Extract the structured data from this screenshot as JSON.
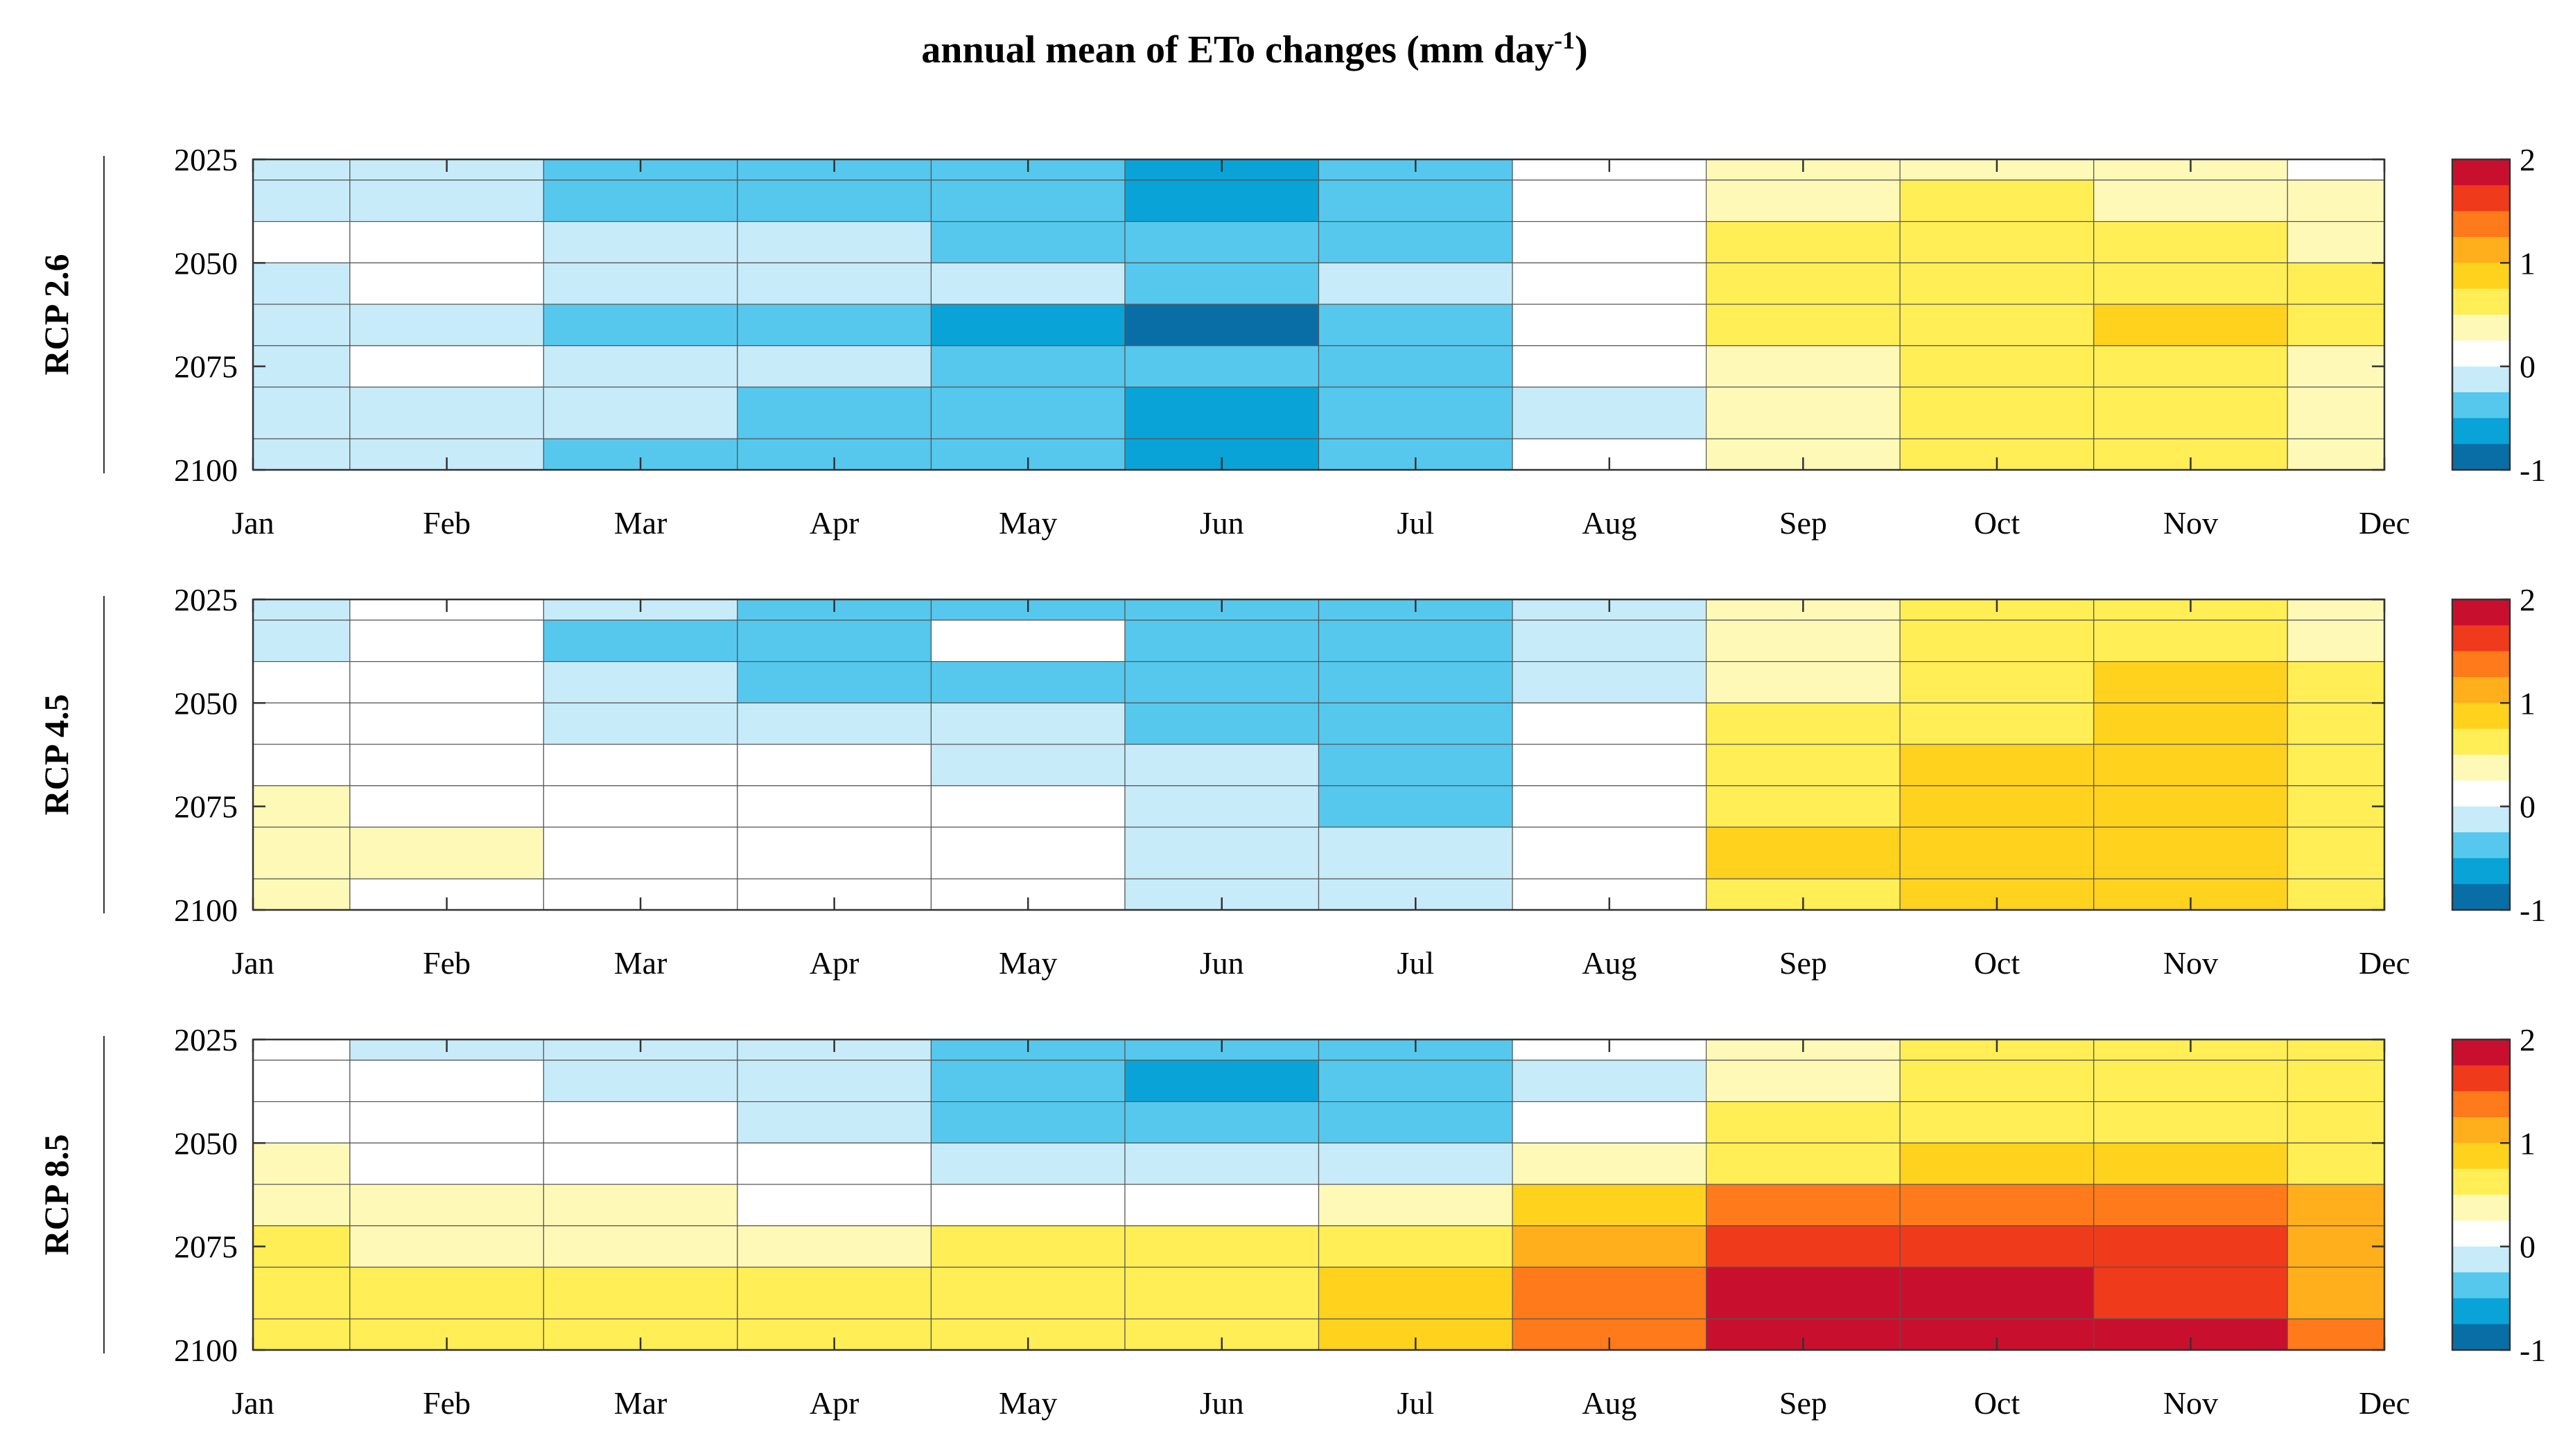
{
  "chart_data": {
    "type": "heatmap",
    "title": "annual mean of ETo changes (mm day",
    "title_superscript": "-1",
    "title_suffix": ")",
    "months": [
      "Jan",
      "Feb",
      "Mar",
      "Apr",
      "May",
      "Jun",
      "Jul",
      "Aug",
      "Sep",
      "Oct",
      "Nov",
      "Dec"
    ],
    "year_ticks": [
      "2025",
      "2050",
      "2075",
      "2100"
    ],
    "year_values": [
      2025,
      2050,
      2075,
      2100
    ],
    "colorbar": {
      "ticks": [
        "2",
        "1",
        "0",
        "-1"
      ],
      "vmin": -1,
      "vmax": 2,
      "colormap": [
        "#0a6ea6",
        "#0aa3d8",
        "#56c8ee",
        "#c8ebf9",
        "#ffffff",
        "#fff9b8",
        "#ffee55",
        "#ffd21e",
        "#ffae1c",
        "#ff7a1a",
        "#f03a1c",
        "#c8102e"
      ]
    },
    "panels": [
      {
        "label": "RCP 2.6",
        "rows": [
          {
            "year": 2025,
            "values": [
              -0.2,
              -0.2,
              -0.3,
              -0.3,
              -0.4,
              -0.6,
              -0.4,
              0.1,
              0.4,
              0.4,
              0.3,
              0.2
            ]
          },
          {
            "year": 2035,
            "values": [
              -0.2,
              -0.1,
              -0.3,
              -0.3,
              -0.4,
              -0.6,
              -0.5,
              0.0,
              0.4,
              0.5,
              0.4,
              0.3
            ]
          },
          {
            "year": 2045,
            "values": [
              0.2,
              0.1,
              -0.1,
              -0.2,
              -0.3,
              -0.5,
              -0.4,
              0.0,
              0.5,
              0.6,
              0.6,
              0.4
            ]
          },
          {
            "year": 2055,
            "values": [
              -0.1,
              0.0,
              -0.1,
              -0.1,
              -0.2,
              -0.3,
              -0.2,
              0.1,
              0.5,
              0.6,
              0.7,
              0.5
            ]
          },
          {
            "year": 2065,
            "values": [
              -0.2,
              -0.2,
              -0.3,
              -0.4,
              -0.6,
              -0.8,
              -0.5,
              0.0,
              0.6,
              0.7,
              0.9,
              0.6
            ]
          },
          {
            "year": 2075,
            "values": [
              -0.2,
              0.2,
              -0.1,
              -0.2,
              -0.3,
              -0.4,
              -0.3,
              0.0,
              0.4,
              0.5,
              0.6,
              0.4
            ]
          },
          {
            "year": 2085,
            "values": [
              -0.2,
              -0.1,
              -0.2,
              -0.3,
              -0.5,
              -0.6,
              -0.5,
              -0.1,
              0.4,
              0.5,
              0.6,
              0.4
            ]
          },
          {
            "year": 2100,
            "values": [
              -0.2,
              -0.2,
              -0.3,
              -0.4,
              -0.5,
              -0.6,
              -0.5,
              0.0,
              0.4,
              0.5,
              0.6,
              0.4
            ]
          }
        ]
      },
      {
        "label": "RCP 4.5",
        "rows": [
          {
            "year": 2025,
            "values": [
              -0.1,
              0.0,
              -0.2,
              -0.3,
              -0.4,
              -0.5,
              -0.4,
              -0.1,
              0.3,
              0.5,
              0.5,
              0.3
            ]
          },
          {
            "year": 2035,
            "values": [
              -0.1,
              0.0,
              -0.4,
              -0.3,
              0.0,
              -0.4,
              -0.5,
              -0.2,
              0.4,
              0.6,
              0.6,
              0.4
            ]
          },
          {
            "year": 2045,
            "values": [
              0.1,
              0.0,
              -0.2,
              -0.3,
              -0.3,
              -0.5,
              -0.4,
              -0.1,
              0.4,
              0.6,
              0.8,
              0.5
            ]
          },
          {
            "year": 2055,
            "values": [
              0.2,
              0.1,
              -0.1,
              -0.1,
              -0.2,
              -0.3,
              -0.3,
              0.1,
              0.5,
              0.7,
              0.8,
              0.6
            ]
          },
          {
            "year": 2065,
            "values": [
              0.2,
              0.1,
              0.0,
              0.0,
              -0.1,
              -0.2,
              -0.4,
              0.2,
              0.6,
              0.8,
              0.9,
              0.7
            ]
          },
          {
            "year": 2075,
            "values": [
              0.3,
              0.2,
              0.1,
              0.1,
              0.0,
              -0.2,
              -0.3,
              0.0,
              0.6,
              0.8,
              0.9,
              0.7
            ]
          },
          {
            "year": 2085,
            "values": [
              0.3,
              0.3,
              0.2,
              0.2,
              0.0,
              -0.2,
              -0.2,
              0.2,
              0.9,
              0.8,
              0.8,
              0.7
            ]
          },
          {
            "year": 2100,
            "values": [
              0.3,
              0.2,
              0.2,
              0.1,
              0.0,
              -0.2,
              -0.2,
              0.1,
              0.7,
              0.8,
              0.8,
              0.6
            ]
          }
        ]
      },
      {
        "label": "RCP 8.5",
        "rows": [
          {
            "year": 2025,
            "values": [
              0.0,
              -0.1,
              -0.1,
              -0.2,
              -0.3,
              -0.4,
              -0.3,
              0.0,
              0.3,
              0.5,
              0.6,
              0.5
            ]
          },
          {
            "year": 2035,
            "values": [
              0.1,
              0.0,
              -0.1,
              -0.2,
              -0.4,
              -0.6,
              -0.5,
              -0.1,
              0.3,
              0.5,
              0.6,
              0.5
            ]
          },
          {
            "year": 2045,
            "values": [
              0.2,
              0.1,
              0.0,
              -0.1,
              -0.3,
              -0.5,
              -0.4,
              0.0,
              0.5,
              0.7,
              0.7,
              0.6
            ]
          },
          {
            "year": 2055,
            "values": [
              0.3,
              0.2,
              0.1,
              0.1,
              -0.1,
              -0.2,
              -0.1,
              0.3,
              0.7,
              0.9,
              0.9,
              0.7
            ]
          },
          {
            "year": 2065,
            "values": [
              0.4,
              0.3,
              0.3,
              0.2,
              0.2,
              0.1,
              0.3,
              0.8,
              1.3,
              1.4,
              1.3,
              1.0
            ]
          },
          {
            "year": 2075,
            "values": [
              0.5,
              0.4,
              0.4,
              0.4,
              0.5,
              0.5,
              0.6,
              1.2,
              1.6,
              1.7,
              1.5,
              1.1
            ]
          },
          {
            "year": 2085,
            "values": [
              0.6,
              0.5,
              0.5,
              0.5,
              0.5,
              0.6,
              0.8,
              1.3,
              1.8,
              1.9,
              1.7,
              1.2
            ]
          },
          {
            "year": 2100,
            "values": [
              0.6,
              0.6,
              0.6,
              0.6,
              0.6,
              0.6,
              0.9,
              1.4,
              1.9,
              2.0,
              1.8,
              1.3
            ]
          }
        ]
      }
    ]
  }
}
